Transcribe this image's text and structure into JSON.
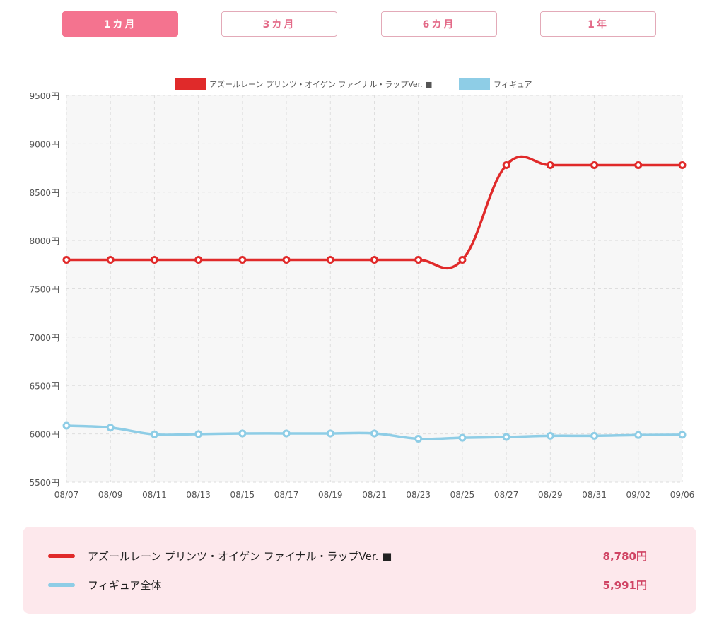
{
  "tabs": [
    {
      "label": "1カ月",
      "active": true
    },
    {
      "label": "3カ月",
      "active": false
    },
    {
      "label": "6カ月",
      "active": false
    },
    {
      "label": "1年",
      "active": false
    }
  ],
  "chart_data": {
    "type": "line",
    "x": [
      "08/07",
      "08/09",
      "08/11",
      "08/13",
      "08/15",
      "08/17",
      "08/19",
      "08/21",
      "08/23",
      "08/25",
      "08/27",
      "08/29",
      "08/31",
      "09/02",
      "09/06"
    ],
    "series": [
      {
        "name": "アズールレーン プリンツ・オイゲン ファイナル・ラップVer. ■",
        "color": "#e02a2a",
        "values": [
          7800,
          7800,
          7800,
          7800,
          7800,
          7800,
          7800,
          7800,
          7800,
          7800,
          8780,
          8780,
          8780,
          8780,
          8780
        ]
      },
      {
        "name": "フィギュア",
        "color": "#8ecde6",
        "values": [
          6085,
          6065,
          5995,
          5998,
          6005,
          6005,
          6005,
          6005,
          5950,
          5960,
          5968,
          5980,
          5980,
          5988,
          5991
        ]
      }
    ],
    "ylim": [
      5500,
      9500
    ],
    "yticks": [
      5500,
      6000,
      6500,
      7000,
      7500,
      8000,
      8500,
      9000,
      9500
    ],
    "ytick_suffix": "円",
    "grid": true,
    "legend": "top"
  },
  "summary": [
    {
      "name": "アズールレーン プリンツ・オイゲン ファイナル・ラップVer. ■",
      "price": "8,780円",
      "color": "#e02a2a"
    },
    {
      "name": "フィギュア全体",
      "price": "5,991円",
      "color": "#8ecde6"
    }
  ]
}
